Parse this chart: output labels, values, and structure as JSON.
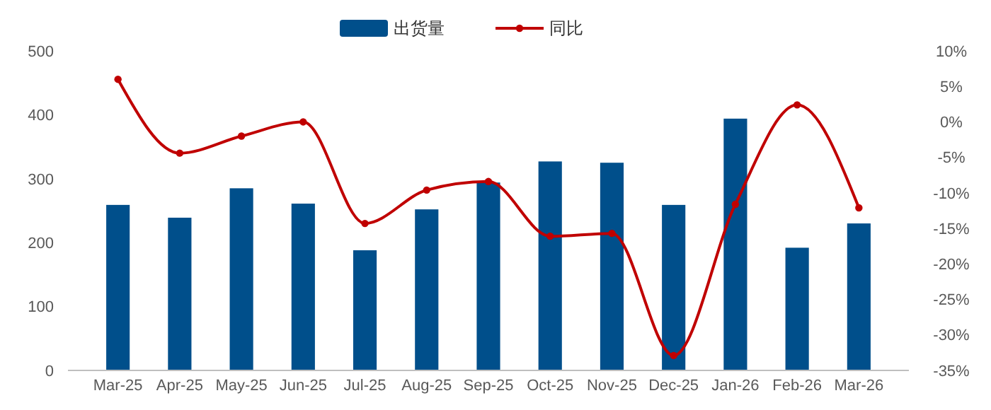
{
  "chart_data": {
    "type": "bar",
    "categories": [
      "Mar-25",
      "Apr-25",
      "May-25",
      "Jun-25",
      "Jul-25",
      "Aug-25",
      "Sep-25",
      "Oct-25",
      "Nov-25",
      "Dec-25",
      "Jan-26",
      "Feb-26",
      "Mar-26"
    ],
    "series": [
      {
        "name": "出货量",
        "color": "#004f8b",
        "values": [
          259,
          239,
          285,
          261,
          188,
          252,
          294,
          327,
          325,
          259,
          394,
          192,
          230
        ]
      },
      {
        "name": "同比",
        "type": "line",
        "axis": "y2",
        "color": "#c00000",
        "marker": "circle",
        "values": [
          6,
          -4.4,
          -2,
          0,
          -14.3,
          -9.6,
          -8.4,
          -16.1,
          -15.7,
          -32.9,
          -11.6,
          2.4,
          -12.1
        ]
      }
    ],
    "ylim": [
      0,
      500
    ],
    "yticks": [
      0,
      100,
      200,
      300,
      400,
      500
    ],
    "y2lim": [
      -35,
      10
    ],
    "y2ticks": [
      {
        "value": -35,
        "label": "-35%"
      },
      {
        "value": -30,
        "label": "-30%"
      },
      {
        "value": -25,
        "label": "-25%"
      },
      {
        "value": -20,
        "label": "-20%"
      },
      {
        "value": -15,
        "label": "-15%"
      },
      {
        "value": -10,
        "label": "-10%"
      },
      {
        "value": -5,
        "label": "-5%"
      },
      {
        "value": 0,
        "label": "0%"
      },
      {
        "value": 5,
        "label": "5%"
      },
      {
        "value": 10,
        "label": "10%"
      }
    ],
    "grid": false,
    "legend": "top"
  }
}
